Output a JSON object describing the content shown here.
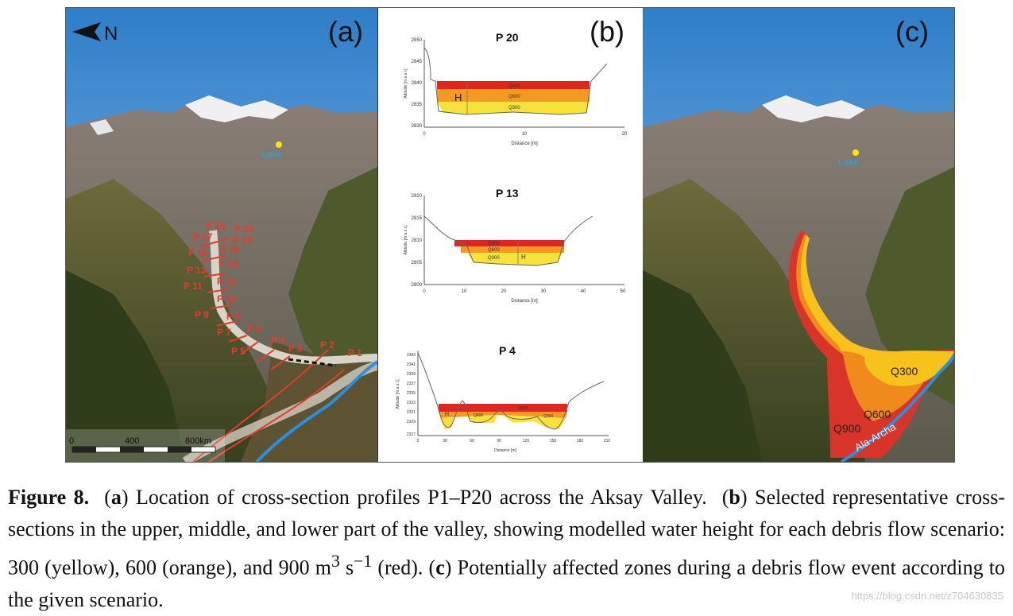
{
  "panels": {
    "a": {
      "label": "(a)",
      "north_label": "N",
      "lake_label": "Lake",
      "scale_ticks": [
        "0",
        "400",
        "800km"
      ],
      "profile_labels": [
        "P 19",
        "P 20",
        "P 17",
        "P 18",
        "P 15",
        "P 16",
        "P 13",
        "P 14",
        "P 11",
        "P 12",
        "P 10",
        "P 9",
        "P 8",
        "P 7",
        "P 6",
        "P 5",
        "P 4",
        "P 3",
        "P 2",
        "P 1"
      ]
    },
    "b": {
      "label": "(b)",
      "profiles": [
        {
          "title": "P 20",
          "ylabel": "Altitude [m a.s.l.]",
          "xlabel": "Distance [m]",
          "yticks": [
            "2850",
            "2845",
            "2840",
            "2835",
            "2830"
          ],
          "xticks": [
            "0",
            "10",
            "20"
          ],
          "q_labels": [
            "Q900",
            "Q600",
            "Q300"
          ],
          "h_label": "H"
        },
        {
          "title": "P 13",
          "ylabel": "Altitude [m a.s.l.]",
          "xlabel": "Distance [m]",
          "yticks": [
            "2820",
            "2815",
            "2810",
            "2805",
            "2800"
          ],
          "xticks": [
            "0",
            "10",
            "20",
            "30",
            "40",
            "50"
          ],
          "q_labels": [
            "Q900",
            "Q600",
            "Q300"
          ],
          "h_label": "H"
        },
        {
          "title": "P 4",
          "ylabel": "Altitude [m a.s.l.]",
          "xlabel": "Distance [m]",
          "yticks": [
            "2343",
            "2341",
            "2339",
            "2337",
            "2335",
            "2333",
            "2331",
            "2329",
            "2327"
          ],
          "xticks": [
            "0",
            "30",
            "60",
            "90",
            "120",
            "150",
            "180",
            "210"
          ],
          "q_labels": [
            "Q600",
            "Q900",
            "Q300"
          ],
          "h_label": "H"
        }
      ]
    },
    "c": {
      "label": "(c)",
      "lake_label": "Lake",
      "river_label": "Ala-Archa",
      "zones": [
        {
          "name": "Q300",
          "color": "#f7c21a"
        },
        {
          "name": "Q600",
          "color": "#f08a1c"
        },
        {
          "name": "Q900",
          "color": "#d9342a"
        }
      ]
    }
  },
  "caption": {
    "figure_label": "Figure 8.",
    "a_letter": "a",
    "a_text": "Location of cross-section profiles P1–P20 across the Aksay Valley.",
    "b_letter": "b",
    "b_text": "Selected representative cross-sections in the upper, middle, and lower part of the valley, showing modelled water height for each debris flow scenario: 300 (yellow), 600 (orange), and 900 m",
    "unit_exp1": "3",
    "unit_s": " s",
    "unit_exp2": "−1",
    "b_tail": " (red).",
    "c_letter": "c",
    "c_text": "Potentially affected zones during a debris flow event according to the given scenario."
  },
  "watermark": "https://blog.csdn.net/z704630835",
  "colors": {
    "q300": "#f7e23a",
    "q600": "#f39a22",
    "q900": "#e0261f",
    "profile_line": "#e53b2e",
    "river": "#2a8fe0"
  }
}
